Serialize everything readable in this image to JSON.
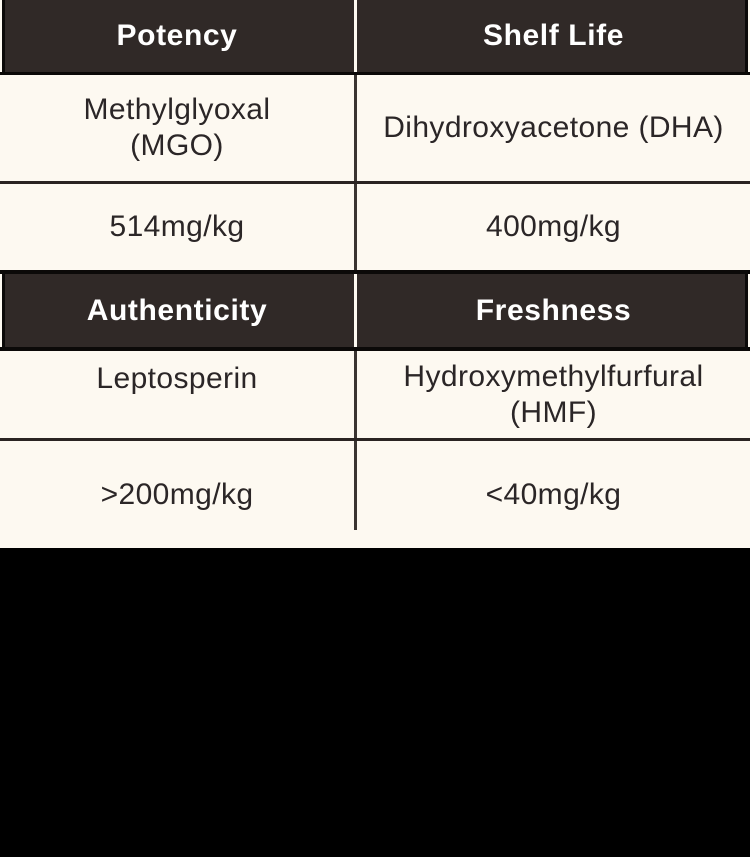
{
  "colors": {
    "background_cream": "#FDF9F1",
    "header_fill": "#302927",
    "outline_black": "#0B0908",
    "body_rule": "#2A2422",
    "column_divider": "#3A3431",
    "header_text": "#FFFFFF",
    "body_text": "#2B2627",
    "letterbox": "#000000"
  },
  "table": {
    "sections": [
      {
        "headers": [
          "Potency",
          "Shelf Life"
        ],
        "rows": [
          [
            "Methylglyoxal\n(MGO)",
            "Dihydroxyacetone (DHA)"
          ],
          [
            "514mg/kg",
            "400mg/kg"
          ]
        ]
      },
      {
        "headers": [
          "Authenticity",
          "Freshness"
        ],
        "rows": [
          [
            "Leptosperin",
            "Hydroxymethylfurfural\n(HMF)"
          ],
          [
            ">200mg/kg",
            "<40mg/kg"
          ]
        ]
      }
    ]
  },
  "chart_data": {
    "type": "table",
    "title": "",
    "columns": [
      {
        "header": "Potency",
        "marker": "Methylglyoxal (MGO)",
        "value": "514mg/kg"
      },
      {
        "header": "Shelf Life",
        "marker": "Dihydroxyacetone (DHA)",
        "value": "400mg/kg"
      },
      {
        "header": "Authenticity",
        "marker": "Leptosperin",
        "value": ">200mg/kg"
      },
      {
        "header": "Freshness",
        "marker": "Hydroxymethylfurfural (HMF)",
        "value": "<40mg/kg"
      }
    ]
  }
}
